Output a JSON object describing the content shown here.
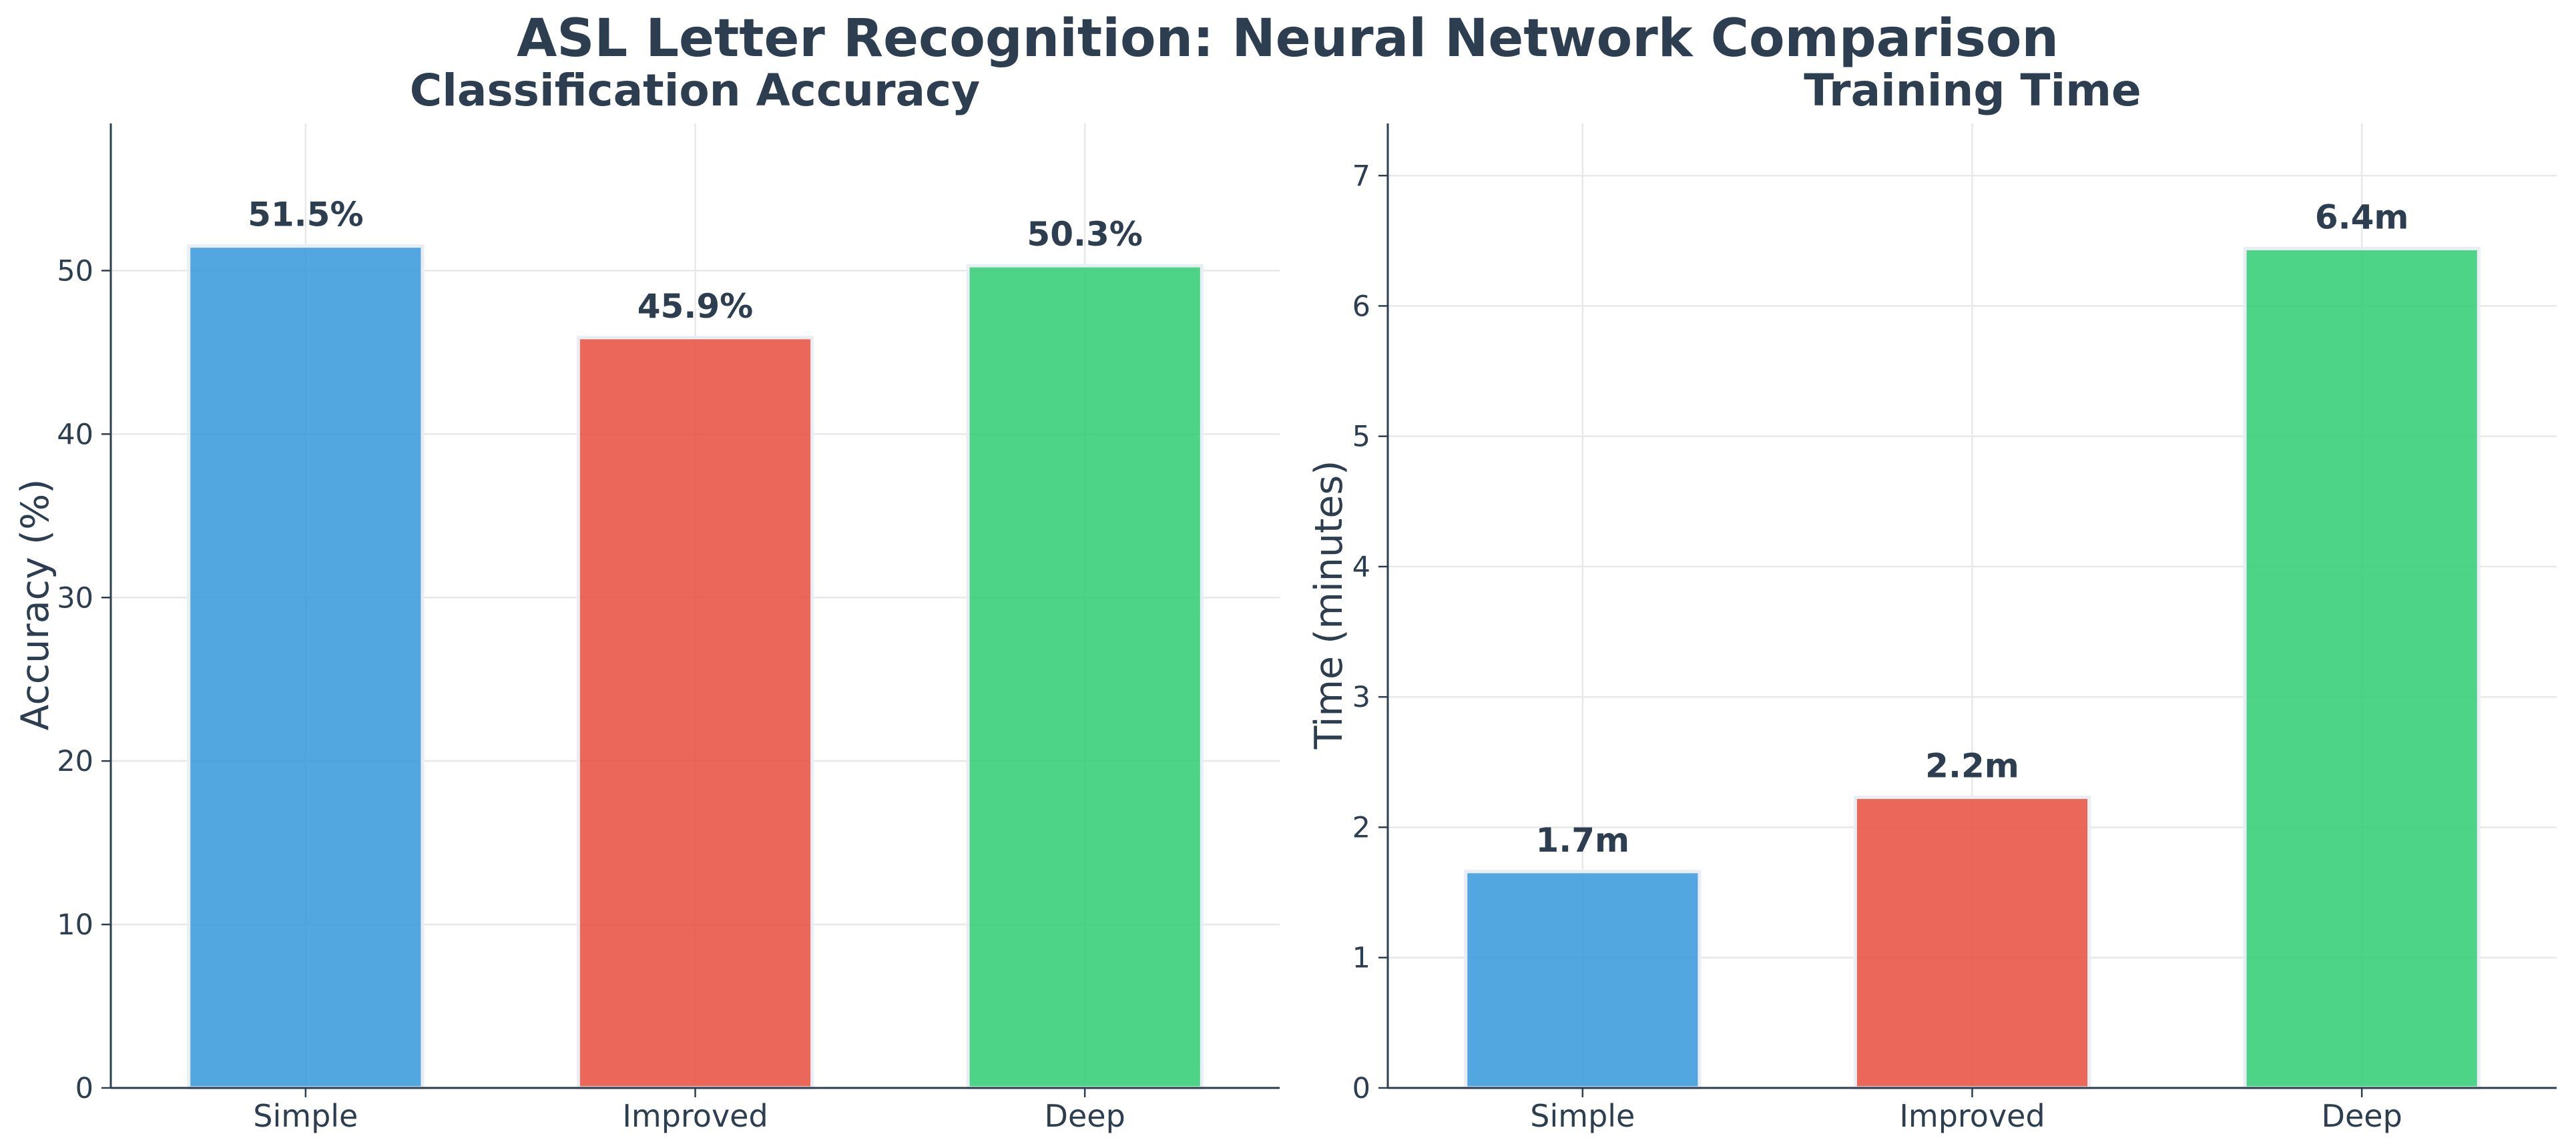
{
  "figure": {
    "title": "ASL Letter Recognition: Neural Network Comparison"
  },
  "chart_data": [
    {
      "type": "bar",
      "title": "Classification Accuracy",
      "xlabel": "",
      "ylabel": "Accuracy (%)",
      "categories": [
        "Simple",
        "Improved",
        "Deep"
      ],
      "values": [
        51.5,
        45.9,
        50.3
      ],
      "value_labels": [
        "51.5%",
        "45.9%",
        "50.3%"
      ],
      "colors": [
        "#3498db",
        "#e74c3c",
        "#2ecc71"
      ],
      "ylim": [
        0,
        59
      ],
      "yticks": [
        0,
        10,
        20,
        30,
        40,
        50
      ],
      "ytick_labels": [
        "0",
        "10",
        "20",
        "30",
        "40",
        "50"
      ],
      "grid": true,
      "legend": "none"
    },
    {
      "type": "bar",
      "title": "Training Time",
      "xlabel": "",
      "ylabel": "Time (minutes)",
      "categories": [
        "Simple",
        "Improved",
        "Deep"
      ],
      "values": [
        1.66,
        2.23,
        6.44
      ],
      "value_labels": [
        "1.7m",
        "2.2m",
        "6.4m"
      ],
      "colors": [
        "#3498db",
        "#e74c3c",
        "#2ecc71"
      ],
      "ylim": [
        0,
        7.4
      ],
      "yticks": [
        0,
        1,
        2,
        3,
        4,
        5,
        6,
        7
      ],
      "ytick_labels": [
        "0",
        "1",
        "2",
        "3",
        "4",
        "5",
        "6",
        "7"
      ],
      "grid": true,
      "legend": "none"
    }
  ]
}
